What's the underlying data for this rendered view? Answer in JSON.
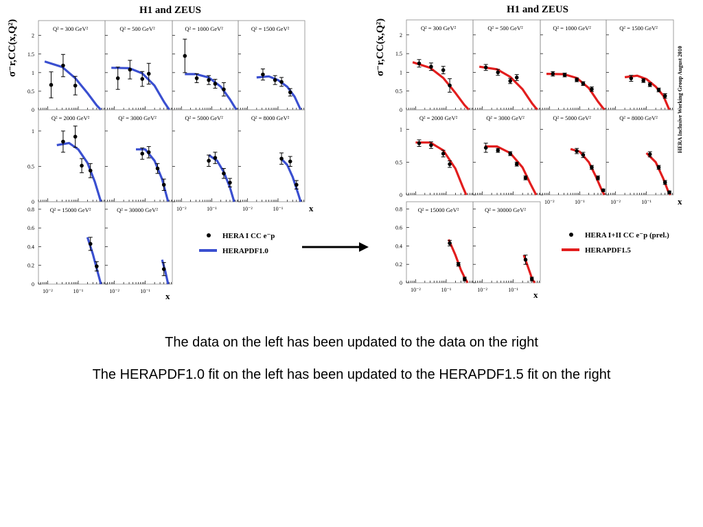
{
  "captions": {
    "line1": "The data on the left has been updated to the data on the right",
    "line2": "The HERAPDF1.0 fit on the left has been updated to the HERAPDF1.5 fit on the right"
  },
  "colors": {
    "fit_left": "#3a4fd0",
    "fit_right": "#e21d1d",
    "points": "#000000",
    "arrow": "#000000"
  },
  "icons": {
    "arrow": "right-arrow-icon"
  },
  "chart_data": [
    {
      "type": "scatter",
      "title": "H1 and ZEUS",
      "ylabel": "σ⁻r,CC(x,Q²)",
      "xlabel": "x",
      "x_scale": "log",
      "x_tick_labels": [
        "10⁻²",
        "10⁻¹"
      ],
      "legend": {
        "position": "right",
        "entries": [
          "HERA I CC e⁻p",
          "HERAPDF1.0"
        ]
      },
      "side_label": "",
      "bins": [
        {
          "q2": "Q² = 300 GeV²",
          "ylim": [
            0,
            2.4
          ],
          "points": [
            [
              0.013,
              0.67,
              0.35
            ],
            [
              0.032,
              1.19,
              0.3
            ],
            [
              0.08,
              0.65,
              0.25
            ]
          ],
          "fit": [
            [
              0.008,
              1.3
            ],
            [
              0.03,
              1.15
            ],
            [
              0.08,
              0.85
            ],
            [
              0.2,
              0.45
            ],
            [
              0.4,
              0.12
            ],
            [
              0.55,
              0.0
            ]
          ]
        },
        {
          "q2": "Q² = 500 GeV²",
          "ylim": [
            0,
            2.4
          ],
          "points": [
            [
              0.013,
              0.85,
              0.3
            ],
            [
              0.032,
              1.08,
              0.25
            ],
            [
              0.08,
              0.83,
              0.2
            ],
            [
              0.13,
              0.97,
              0.28
            ]
          ],
          "fit": [
            [
              0.008,
              1.13
            ],
            [
              0.03,
              1.12
            ],
            [
              0.08,
              0.98
            ],
            [
              0.2,
              0.65
            ],
            [
              0.4,
              0.22
            ],
            [
              0.6,
              0.0
            ]
          ]
        },
        {
          "q2": "Q² = 1000 GeV²",
          "ylim": [
            0,
            2.4
          ],
          "points": [
            [
              0.013,
              1.45,
              0.45
            ],
            [
              0.032,
              0.85,
              0.12
            ],
            [
              0.08,
              0.8,
              0.12
            ],
            [
              0.13,
              0.7,
              0.12
            ],
            [
              0.25,
              0.55,
              0.18
            ]
          ],
          "fit": [
            [
              0.013,
              0.96
            ],
            [
              0.03,
              0.96
            ],
            [
              0.08,
              0.87
            ],
            [
              0.2,
              0.62
            ],
            [
              0.4,
              0.28
            ],
            [
              0.65,
              0.0
            ]
          ]
        },
        {
          "q2": "Q² = 1500 GeV²",
          "ylim": [
            0,
            2.4
          ],
          "points": [
            [
              0.032,
              0.95,
              0.15
            ],
            [
              0.08,
              0.8,
              0.12
            ],
            [
              0.13,
              0.75,
              0.12
            ],
            [
              0.25,
              0.47,
              0.1
            ]
          ],
          "fit": [
            [
              0.02,
              0.87
            ],
            [
              0.05,
              0.9
            ],
            [
              0.1,
              0.8
            ],
            [
              0.2,
              0.62
            ],
            [
              0.35,
              0.35
            ],
            [
              0.55,
              0.0
            ]
          ]
        },
        {
          "q2": "Q² = 2000 GeV²",
          "ylim": [
            0,
            1.3
          ],
          "points": [
            [
              0.032,
              0.85,
              0.15
            ],
            [
              0.08,
              0.92,
              0.15
            ],
            [
              0.13,
              0.51,
              0.1
            ],
            [
              0.25,
              0.44,
              0.1
            ]
          ],
          "fit": [
            [
              0.02,
              0.8
            ],
            [
              0.05,
              0.83
            ],
            [
              0.1,
              0.74
            ],
            [
              0.2,
              0.55
            ],
            [
              0.35,
              0.28
            ],
            [
              0.55,
              0.0
            ]
          ]
        },
        {
          "q2": "Q² = 3000 GeV²",
          "ylim": [
            0,
            1.3
          ],
          "points": [
            [
              0.08,
              0.68,
              0.08
            ],
            [
              0.13,
              0.7,
              0.08
            ],
            [
              0.25,
              0.47,
              0.07
            ],
            [
              0.4,
              0.24,
              0.08
            ]
          ],
          "fit": [
            [
              0.05,
              0.74
            ],
            [
              0.1,
              0.74
            ],
            [
              0.2,
              0.58
            ],
            [
              0.35,
              0.32
            ],
            [
              0.55,
              0.0
            ]
          ]
        },
        {
          "q2": "Q² = 5000 GeV²",
          "ylim": [
            0,
            1.3
          ],
          "points": [
            [
              0.08,
              0.58,
              0.08
            ],
            [
              0.13,
              0.62,
              0.08
            ],
            [
              0.25,
              0.4,
              0.07
            ],
            [
              0.4,
              0.27,
              0.06
            ]
          ],
          "fit": [
            [
              0.08,
              0.66
            ],
            [
              0.15,
              0.58
            ],
            [
              0.25,
              0.42
            ],
            [
              0.4,
              0.2
            ],
            [
              0.55,
              0.0
            ]
          ]
        },
        {
          "q2": "Q² = 8000 GeV²",
          "ylim": [
            0,
            1.3
          ],
          "points": [
            [
              0.13,
              0.61,
              0.08
            ],
            [
              0.25,
              0.57,
              0.07
            ],
            [
              0.4,
              0.24,
              0.06
            ]
          ],
          "fit": [
            [
              0.12,
              0.62
            ],
            [
              0.2,
              0.52
            ],
            [
              0.3,
              0.35
            ],
            [
              0.45,
              0.12
            ],
            [
              0.55,
              0.0
            ]
          ]
        },
        {
          "q2": "Q² = 15000 GeV²",
          "ylim": [
            0,
            0.88
          ],
          "points": [
            [
              0.25,
              0.43,
              0.07
            ],
            [
              0.4,
              0.19,
              0.05
            ]
          ],
          "fit": [
            [
              0.2,
              0.5
            ],
            [
              0.3,
              0.32
            ],
            [
              0.42,
              0.14
            ],
            [
              0.55,
              0.0
            ]
          ]
        },
        {
          "q2": "Q² = 30000 GeV²",
          "ylim": [
            0,
            0.88
          ],
          "points": [
            [
              0.4,
              0.16,
              0.07
            ]
          ],
          "fit": [
            [
              0.35,
              0.26
            ],
            [
              0.45,
              0.13
            ],
            [
              0.55,
              0.0
            ]
          ]
        }
      ]
    },
    {
      "type": "scatter",
      "title": "H1 and ZEUS",
      "ylabel": "σ⁻r,CC(x,Q²)",
      "xlabel": "x",
      "x_scale": "log",
      "x_tick_labels": [
        "10⁻²",
        "10⁻¹"
      ],
      "legend": {
        "position": "right",
        "entries": [
          "HERA I+II CC e⁻p (prel.)",
          "HERAPDF1.5"
        ]
      },
      "side_label": "HERA Inclusive Working Group          August 2010",
      "bins": [
        {
          "q2": "Q² = 300 GeV²",
          "ylim": [
            0,
            2.4
          ],
          "points": [
            [
              0.013,
              1.24,
              0.1
            ],
            [
              0.032,
              1.15,
              0.1
            ],
            [
              0.08,
              1.06,
              0.1
            ],
            [
              0.13,
              0.65,
              0.18
            ]
          ],
          "fit": [
            [
              0.008,
              1.27
            ],
            [
              0.03,
              1.12
            ],
            [
              0.08,
              0.85
            ],
            [
              0.2,
              0.45
            ],
            [
              0.4,
              0.12
            ],
            [
              0.55,
              0.0
            ]
          ]
        },
        {
          "q2": "Q² = 500 GeV²",
          "ylim": [
            0,
            2.4
          ],
          "points": [
            [
              0.013,
              1.13,
              0.08
            ],
            [
              0.032,
              1.0,
              0.08
            ],
            [
              0.08,
              0.77,
              0.07
            ],
            [
              0.13,
              0.86,
              0.08
            ]
          ],
          "fit": [
            [
              0.008,
              1.15
            ],
            [
              0.03,
              1.08
            ],
            [
              0.08,
              0.88
            ],
            [
              0.2,
              0.55
            ],
            [
              0.4,
              0.18
            ],
            [
              0.6,
              0.0
            ]
          ]
        },
        {
          "q2": "Q² = 1000 GeV²",
          "ylim": [
            0,
            2.4
          ],
          "points": [
            [
              0.013,
              0.96,
              0.06
            ],
            [
              0.032,
              0.93,
              0.05
            ],
            [
              0.08,
              0.8,
              0.05
            ],
            [
              0.13,
              0.7,
              0.05
            ],
            [
              0.25,
              0.55,
              0.06
            ]
          ],
          "fit": [
            [
              0.008,
              0.96
            ],
            [
              0.03,
              0.95
            ],
            [
              0.08,
              0.85
            ],
            [
              0.2,
              0.58
            ],
            [
              0.4,
              0.22
            ],
            [
              0.65,
              0.0
            ]
          ]
        },
        {
          "q2": "Q² = 1500 GeV²",
          "ylim": [
            0,
            2.4
          ],
          "points": [
            [
              0.032,
              0.84,
              0.08
            ],
            [
              0.08,
              0.78,
              0.05
            ],
            [
              0.13,
              0.67,
              0.05
            ],
            [
              0.25,
              0.53,
              0.05
            ],
            [
              0.4,
              0.37,
              0.06
            ]
          ],
          "fit": [
            [
              0.02,
              0.87
            ],
            [
              0.05,
              0.91
            ],
            [
              0.1,
              0.82
            ],
            [
              0.2,
              0.62
            ],
            [
              0.35,
              0.38
            ],
            [
              0.55,
              0.0
            ]
          ]
        },
        {
          "q2": "Q² = 2000 GeV²",
          "ylim": [
            0,
            1.3
          ],
          "points": [
            [
              0.013,
              0.79,
              0.05
            ],
            [
              0.032,
              0.76,
              0.05
            ],
            [
              0.08,
              0.63,
              0.05
            ],
            [
              0.13,
              0.47,
              0.05
            ]
          ],
          "fit": [
            [
              0.01,
              0.8
            ],
            [
              0.03,
              0.8
            ],
            [
              0.08,
              0.68
            ],
            [
              0.2,
              0.4
            ],
            [
              0.35,
              0.12
            ],
            [
              0.45,
              0.0
            ]
          ]
        },
        {
          "q2": "Q² = 3000 GeV²",
          "ylim": [
            0,
            1.3
          ],
          "points": [
            [
              0.013,
              0.72,
              0.07
            ],
            [
              0.032,
              0.68,
              0.03
            ],
            [
              0.08,
              0.63,
              0.03
            ],
            [
              0.13,
              0.47,
              0.03
            ],
            [
              0.25,
              0.26,
              0.03
            ]
          ],
          "fit": [
            [
              0.012,
              0.74
            ],
            [
              0.03,
              0.74
            ],
            [
              0.08,
              0.64
            ],
            [
              0.2,
              0.42
            ],
            [
              0.35,
              0.18
            ],
            [
              0.55,
              0.0
            ]
          ]
        },
        {
          "q2": "Q² = 5000 GeV²",
          "ylim": [
            0,
            1.3
          ],
          "points": [
            [
              0.08,
              0.67,
              0.04
            ],
            [
              0.13,
              0.61,
              0.04
            ],
            [
              0.25,
              0.42,
              0.03
            ],
            [
              0.4,
              0.26,
              0.03
            ],
            [
              0.6,
              0.07,
              0.02
            ]
          ],
          "fit": [
            [
              0.05,
              0.7
            ],
            [
              0.1,
              0.66
            ],
            [
              0.2,
              0.5
            ],
            [
              0.35,
              0.27
            ],
            [
              0.55,
              0.06
            ],
            [
              0.65,
              0.0
            ]
          ]
        },
        {
          "q2": "Q² = 8000 GeV²",
          "ylim": [
            0,
            1.3
          ],
          "points": [
            [
              0.13,
              0.62,
              0.04
            ],
            [
              0.25,
              0.42,
              0.03
            ],
            [
              0.4,
              0.19,
              0.03
            ],
            [
              0.55,
              0.04,
              0.02
            ]
          ],
          "fit": [
            [
              0.1,
              0.64
            ],
            [
              0.2,
              0.5
            ],
            [
              0.35,
              0.25
            ],
            [
              0.5,
              0.06
            ],
            [
              0.6,
              0.0
            ]
          ]
        },
        {
          "q2": "Q² = 15000 GeV²",
          "ylim": [
            0,
            0.88
          ],
          "points": [
            [
              0.13,
              0.43,
              0.03
            ],
            [
              0.25,
              0.2,
              0.02
            ],
            [
              0.4,
              0.04,
              0.02
            ]
          ],
          "fit": [
            [
              0.12,
              0.47
            ],
            [
              0.2,
              0.3
            ],
            [
              0.3,
              0.14
            ],
            [
              0.42,
              0.04
            ],
            [
              0.5,
              0.0
            ]
          ]
        },
        {
          "q2": "Q² = 30000 GeV²",
          "ylim": [
            0,
            0.88
          ],
          "points": [
            [
              0.25,
              0.25,
              0.05
            ],
            [
              0.4,
              0.04,
              0.02
            ]
          ],
          "fit": [
            [
              0.22,
              0.3
            ],
            [
              0.3,
              0.17
            ],
            [
              0.42,
              0.03
            ],
            [
              0.5,
              0.0
            ]
          ]
        }
      ]
    }
  ]
}
